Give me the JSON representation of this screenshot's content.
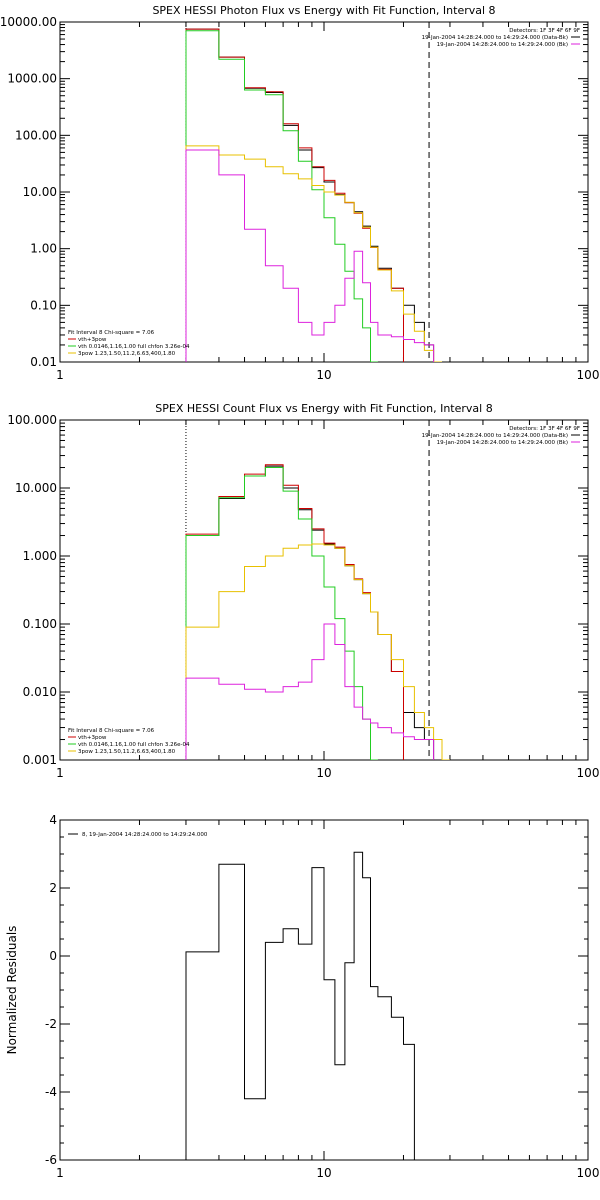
{
  "colors": {
    "black": "#000000",
    "red": "#cc0000",
    "green": "#22cc22",
    "magenta": "#dd22dd",
    "yellow": "#e8c000"
  },
  "energy_edges": [
    3,
    4,
    5,
    6,
    7,
    8,
    9,
    10,
    11,
    12,
    13,
    14,
    15,
    16,
    18,
    20,
    22,
    24,
    26,
    28,
    30,
    33,
    36
  ],
  "chart_data": [
    {
      "type": "line",
      "title": "SPEX HESSI Photon Flux vs Energy with Fit Function, Interval 8",
      "xlog": true,
      "ylog": true,
      "xlim": [
        1,
        100
      ],
      "ylim": [
        0.01,
        10000
      ],
      "xticks": [
        "1",
        "10",
        "100"
      ],
      "yticks": [
        {
          "v": 0.01,
          "label": "0.01"
        },
        {
          "v": 0.1,
          "label": "0.10"
        },
        {
          "v": 1,
          "label": "1.00"
        },
        {
          "v": 10,
          "label": "10.00"
        },
        {
          "v": 100,
          "label": "100.00"
        },
        {
          "v": 1000,
          "label": "1000.00"
        },
        {
          "v": 10000,
          "label": "10000.00"
        }
      ],
      "vline_dotted": 3,
      "vline_dashed": 25,
      "info": [
        "Detectors: 1F 3F 4F 6F 9F",
        "19-Jan-2004 14:28:24.000 to 14:29:24.000 (Data-Bk)",
        "19-Jan-2004 14:28:24.000 to 14:29:24.000 (Bk)"
      ],
      "legend": [
        "Fit Interval 8   Chi-square = 7.06",
        "vth+3pow",
        "vth 0.0146,1.16,1.00  full chfon 3.26e-04",
        "3pow 1.23,1.50,11.2,6.63,400,1.80"
      ],
      "series": [
        {
          "name": "Data-Bk",
          "color": "#000000",
          "values": [
            7500,
            2400,
            680,
            570,
            150,
            55,
            27,
            15,
            9,
            6.5,
            4.5,
            2.5,
            1.1,
            0.45,
            0.2,
            0.1,
            0.05,
            0.02
          ]
        },
        {
          "name": "vth+3pow",
          "color": "#cc0000",
          "values": [
            7500,
            2400,
            690,
            590,
            160,
            60,
            28,
            16,
            9.5,
            6.5,
            4.2,
            2.3,
            1.05,
            0.43,
            0.2
          ]
        },
        {
          "name": "vth",
          "color": "#22cc22",
          "values": [
            7000,
            2200,
            630,
            520,
            120,
            35,
            11,
            3.5,
            1.2,
            0.4,
            0.13,
            0.04,
            0.01
          ]
        },
        {
          "name": "3pow",
          "color": "#e8c000",
          "values": [
            65,
            45,
            38,
            28,
            21,
            17,
            13,
            10,
            8.8,
            6.6,
            4.3,
            2.4,
            1.06,
            0.42,
            0.18,
            0.07,
            0.035,
            0.016,
            0.01
          ]
        },
        {
          "name": "Bk",
          "color": "#dd22dd",
          "values": [
            55,
            20,
            2.2,
            0.5,
            0.2,
            0.05,
            0.03,
            0.05,
            0.1,
            0.3,
            0.9,
            0.25,
            0.05,
            0.03,
            0.028,
            0.025,
            0.022,
            0.02
          ]
        }
      ]
    },
    {
      "type": "line",
      "title": "SPEX HESSI Count Flux vs Energy with Fit Function, Interval 8",
      "xlog": true,
      "ylog": true,
      "xlim": [
        1,
        100
      ],
      "ylim": [
        0.001,
        100
      ],
      "xticks": [
        "1",
        "10",
        "100"
      ],
      "yticks": [
        {
          "v": 0.001,
          "label": "0.001"
        },
        {
          "v": 0.01,
          "label": "0.010"
        },
        {
          "v": 0.1,
          "label": "0.100"
        },
        {
          "v": 1,
          "label": "1.000"
        },
        {
          "v": 10,
          "label": "10.000"
        },
        {
          "v": 100,
          "label": "100.000"
        }
      ],
      "vline_dotted": 3,
      "vline_dashed": 25,
      "info": [
        "Detectors: 1F 3F 4F 6F 9F",
        "19-Jan-2004 14:28:24.000 to 14:29:24.000 (Data-Bk)",
        "19-Jan-2004 14:28:24.000 to 14:29:24.000 (Bk)"
      ],
      "legend": [
        "Fit Interval 8   Chi-square = 7.06",
        "vth+3pow",
        "vth 0.0146,1.16,1.00  full chfon 3.26e-04",
        "3pow 1.23,1.50,11.2,6.63,400,1.80"
      ],
      "series": [
        {
          "name": "Data-Bk",
          "color": "#000000",
          "values": [
            2.0,
            7.0,
            15,
            21,
            10,
            4.8,
            2.4,
            1.5,
            1.3,
            0.72,
            0.45,
            0.28,
            0.15,
            0.07,
            0.02,
            0.005,
            0.003,
            0.002
          ]
        },
        {
          "name": "vth+3pow",
          "color": "#cc0000",
          "values": [
            2.1,
            7.5,
            16,
            22,
            11,
            5.0,
            2.5,
            1.55,
            1.35,
            0.75,
            0.46,
            0.29,
            0.15,
            0.07,
            0.02
          ]
        },
        {
          "name": "vth",
          "color": "#22cc22",
          "values": [
            2.0,
            7.2,
            15,
            20,
            9,
            3.5,
            1.0,
            0.35,
            0.12,
            0.04,
            0.012,
            0.004,
            0.001
          ]
        },
        {
          "name": "3pow",
          "color": "#e8c000",
          "values": [
            0.09,
            0.3,
            0.7,
            1.0,
            1.3,
            1.45,
            1.5,
            1.45,
            1.3,
            0.72,
            0.45,
            0.28,
            0.15,
            0.07,
            0.03,
            0.012,
            0.005,
            0.003,
            0.002,
            0.001
          ]
        },
        {
          "name": "Bk",
          "color": "#dd22dd",
          "values": [
            0.016,
            0.013,
            0.011,
            0.01,
            0.012,
            0.014,
            0.03,
            0.1,
            0.05,
            0.012,
            0.006,
            0.004,
            0.0035,
            0.003,
            0.0025,
            0.0022,
            0.002,
            0.002
          ]
        }
      ]
    },
    {
      "type": "line",
      "title": "",
      "ylabel": "Normalized Residuals",
      "xlog": true,
      "ylog": false,
      "xlim": [
        1,
        100
      ],
      "ylim": [
        -6,
        4
      ],
      "xticks": [
        "1",
        "10",
        "100"
      ],
      "yticks": [
        {
          "v": -6,
          "label": "-6"
        },
        {
          "v": -4,
          "label": "-4"
        },
        {
          "v": -2,
          "label": "-2"
        },
        {
          "v": 0,
          "label": "0"
        },
        {
          "v": 2,
          "label": "2"
        },
        {
          "v": 4,
          "label": "4"
        }
      ],
      "legend": [
        "8, 19-Jan-2004 14:28:24.000 to 14:29:24.000"
      ],
      "series": [
        {
          "name": "residuals",
          "color": "#000000",
          "values": [
            0.12,
            2.7,
            -4.2,
            0.4,
            0.8,
            0.35,
            2.6,
            -0.7,
            -3.2,
            -0.2,
            3.05,
            2.3,
            -0.9,
            -1.2,
            -1.8,
            -2.6
          ]
        }
      ]
    }
  ]
}
